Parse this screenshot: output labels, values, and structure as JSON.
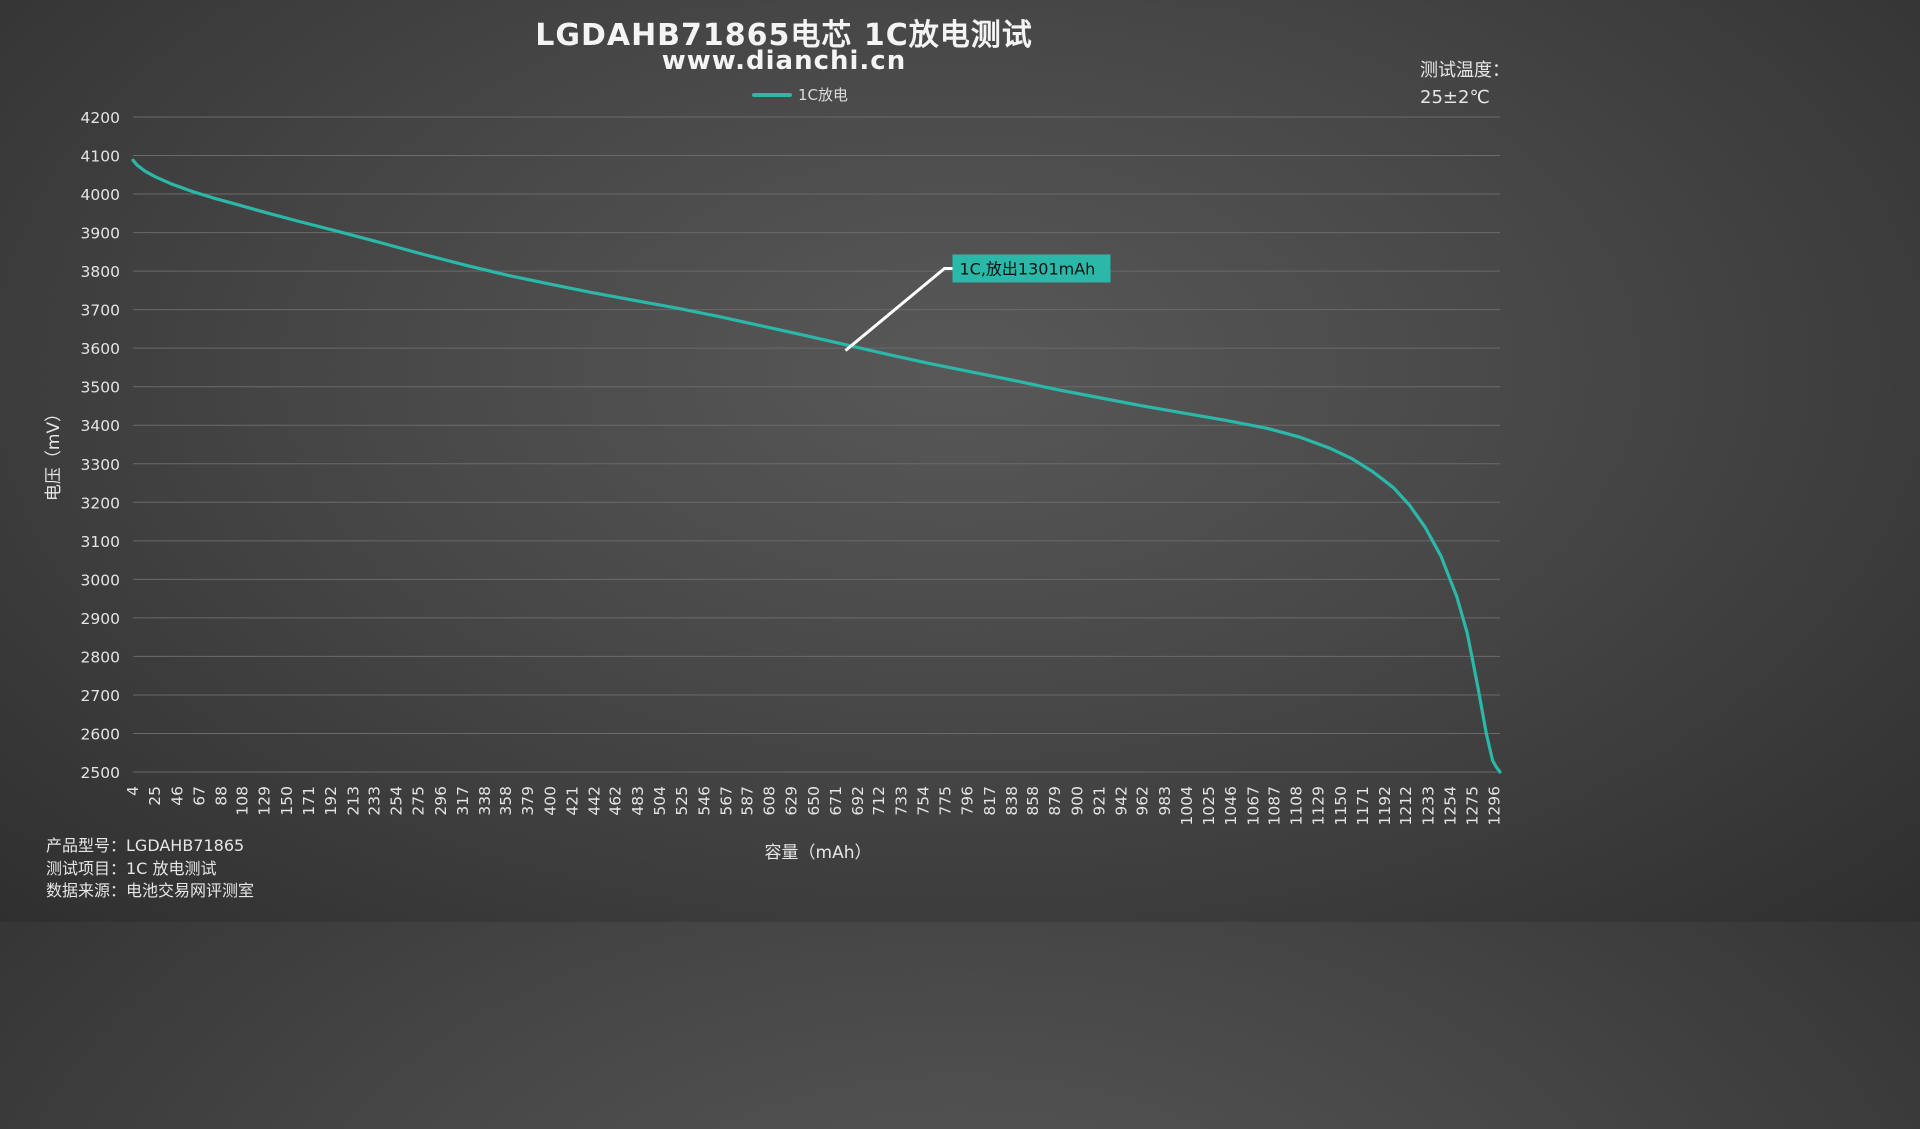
{
  "header": {
    "title": "LGDAHB71865电芯 1C放电测试",
    "subtitle": "www.dianchi.cn",
    "temp_label": "测试温度：",
    "temp_value": "25±2℃"
  },
  "info": {
    "model": "产品型号：LGDAHB71865",
    "item": "测试项目：1C 放电测试",
    "source": "数据来源：电池交易网评测室"
  },
  "colors": {
    "series": "#2bb8a8",
    "grid": "#6a6a6a",
    "annotation_line": "#ffffff"
  },
  "chart_data": {
    "type": "line",
    "title": "LGDAHB71865电芯 1C放电测试",
    "xlabel": "容量（mAh）",
    "ylabel": "电压（mV）",
    "ylim": [
      2500,
      4200
    ],
    "yticks": [
      4200,
      4100,
      4000,
      3900,
      3800,
      3700,
      3600,
      3500,
      3400,
      3300,
      3200,
      3100,
      3000,
      2900,
      2800,
      2700,
      2600,
      2500
    ],
    "xlim": [
      4,
      1301
    ],
    "xticks": [
      4,
      25,
      46,
      67,
      88,
      108,
      129,
      150,
      171,
      192,
      213,
      233,
      254,
      275,
      296,
      317,
      338,
      358,
      379,
      400,
      421,
      442,
      462,
      483,
      504,
      525,
      546,
      567,
      587,
      608,
      629,
      650,
      671,
      692,
      712,
      733,
      754,
      775,
      796,
      817,
      838,
      858,
      879,
      900,
      921,
      942,
      962,
      983,
      1004,
      1025,
      1046,
      1067,
      1087,
      1108,
      1129,
      1150,
      1171,
      1192,
      1212,
      1233,
      1254,
      1275,
      1296
    ],
    "legend": "top-center",
    "grid": true,
    "series": [
      {
        "name": "1C放电",
        "x": [
          4,
          8,
          15,
          25,
          40,
          60,
          80,
          100,
          130,
          160,
          200,
          240,
          280,
          320,
          360,
          400,
          440,
          480,
          520,
          560,
          600,
          640,
          680,
          720,
          760,
          800,
          840,
          880,
          920,
          960,
          1000,
          1040,
          1080,
          1110,
          1140,
          1160,
          1180,
          1200,
          1215,
          1230,
          1245,
          1260,
          1270,
          1280,
          1288,
          1294,
          1297,
          1301
        ],
        "values": [
          4088,
          4075,
          4060,
          4045,
          4027,
          4007,
          3990,
          3975,
          3952,
          3930,
          3902,
          3873,
          3843,
          3815,
          3789,
          3766,
          3744,
          3724,
          3704,
          3682,
          3658,
          3634,
          3609,
          3584,
          3560,
          3538,
          3516,
          3493,
          3472,
          3451,
          3432,
          3413,
          3392,
          3370,
          3340,
          3314,
          3280,
          3238,
          3193,
          3135,
          3060,
          2955,
          2860,
          2720,
          2600,
          2530,
          2515,
          2500
        ]
      }
    ],
    "annotation": {
      "text": "1C,放出1301mAh",
      "x": 680,
      "y": 3594
    }
  }
}
